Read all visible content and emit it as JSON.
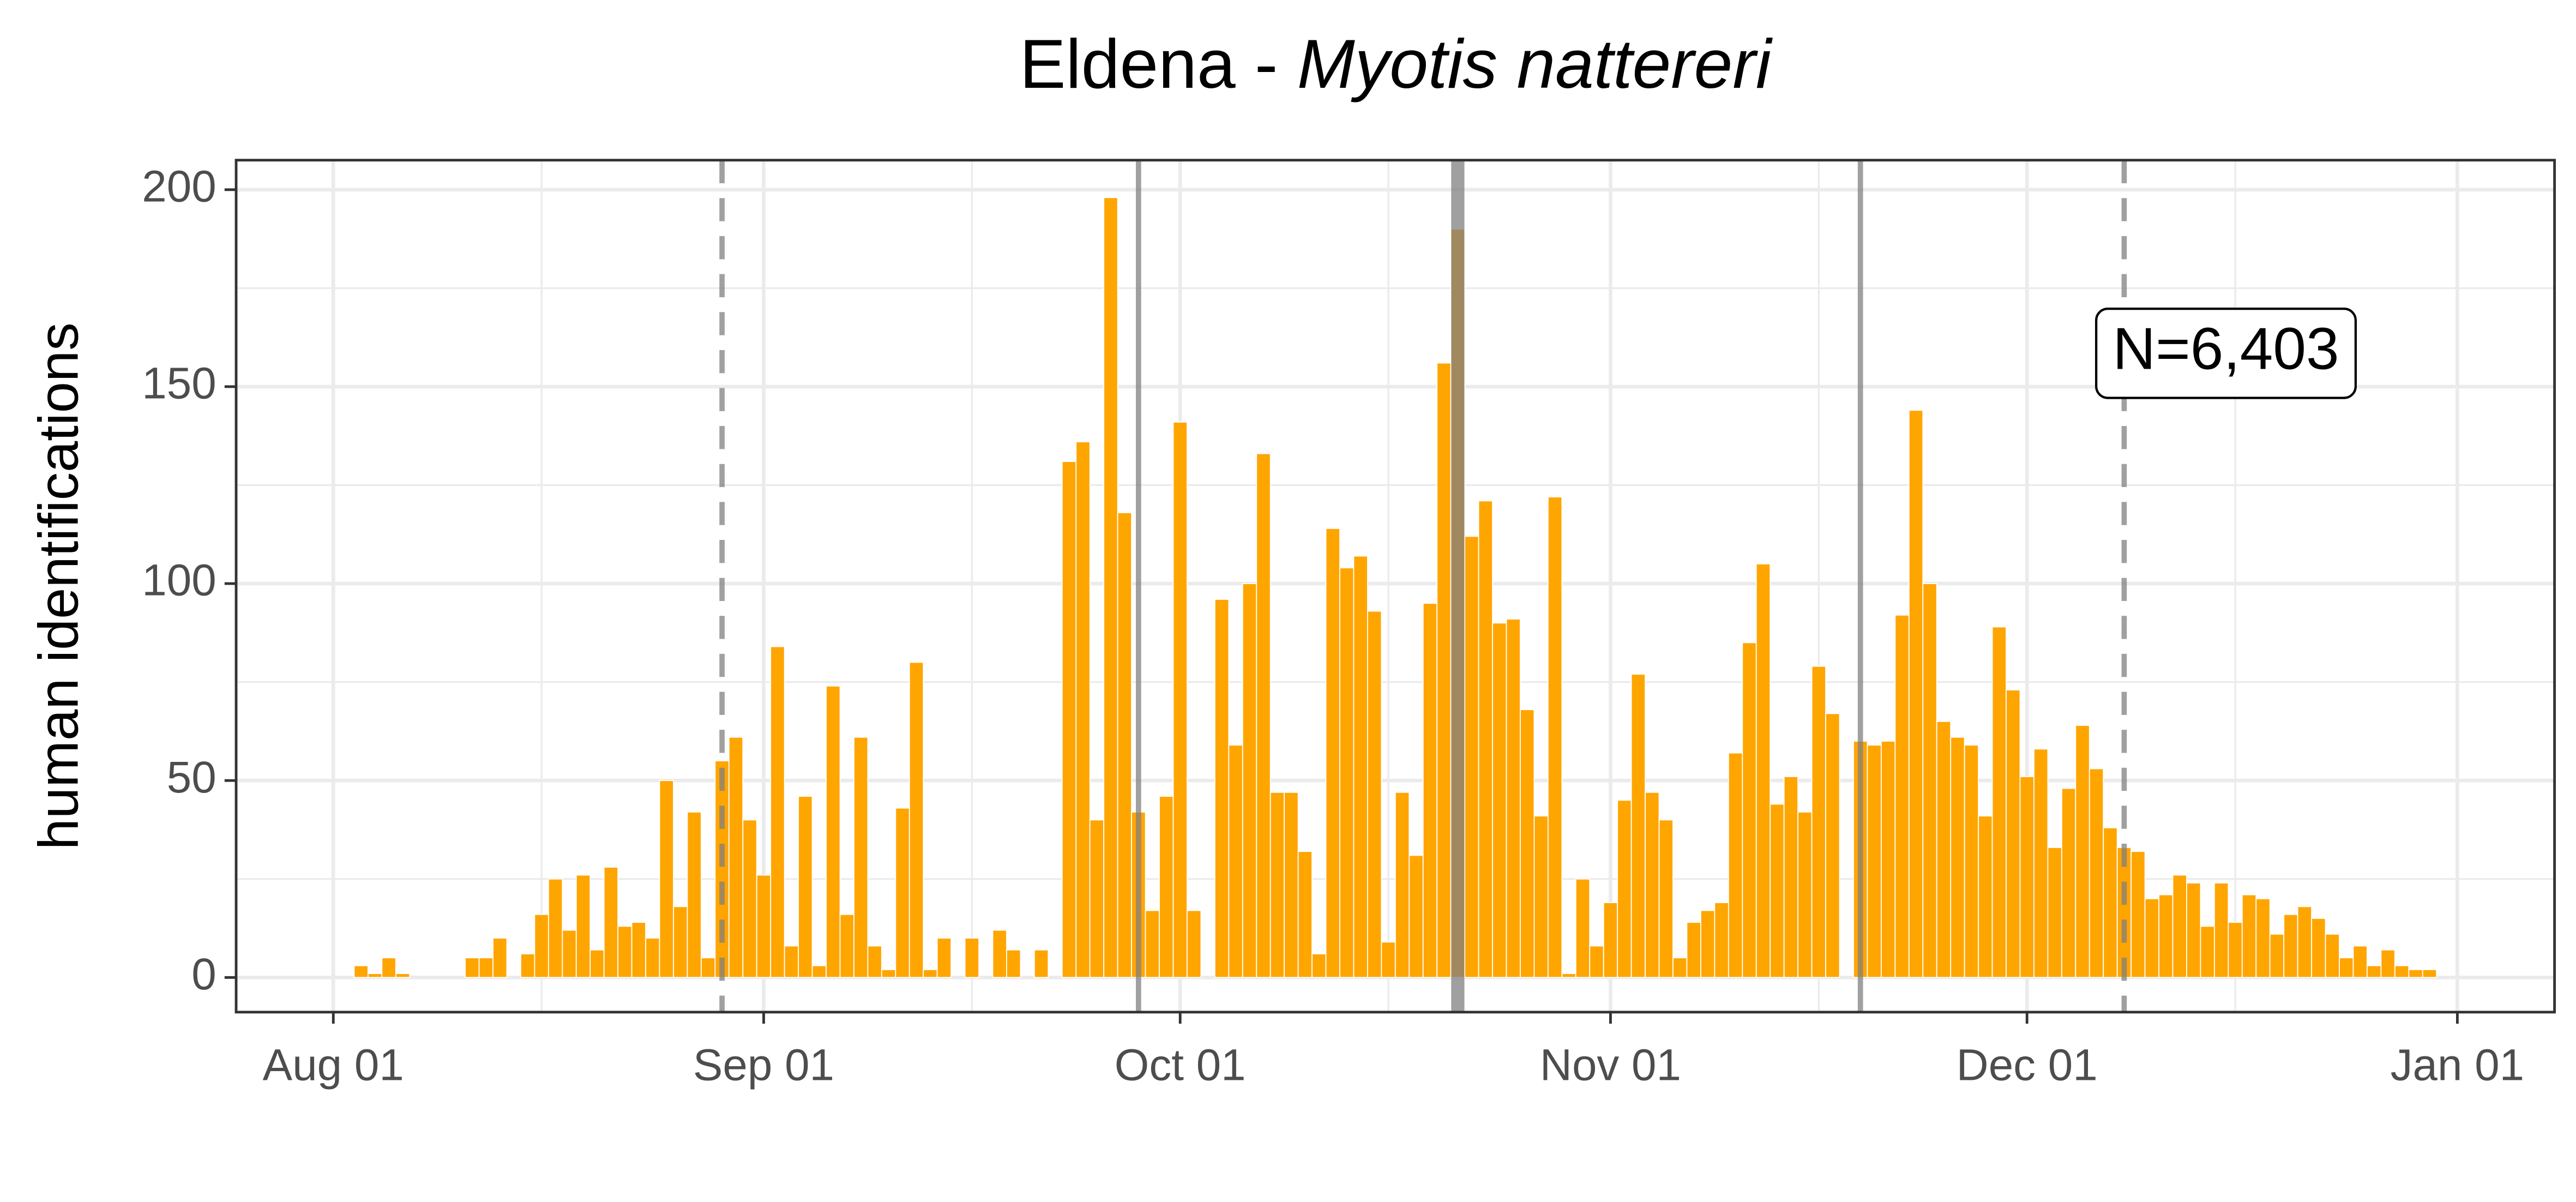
{
  "chart_data": {
    "type": "bar",
    "title_parts": [
      {
        "text": "Eldena - ",
        "style": "normal"
      },
      {
        "text": "Myotis nattereri",
        "style": "italic"
      }
    ],
    "y_label": "human identifications",
    "annotation": "N=6,403",
    "color": "#ffa500",
    "grid": true,
    "xlim": [
      "07-25",
      "01-08"
    ],
    "xticks": [
      {
        "value": "08-01",
        "label": "Aug 01"
      },
      {
        "value": "09-01",
        "label": "Sep 01"
      },
      {
        "value": "10-01",
        "label": "Oct 01"
      },
      {
        "value": "11-01",
        "label": "Nov 01"
      },
      {
        "value": "12-01",
        "label": "Dec 01"
      },
      {
        "value": "01-01",
        "label": "Jan 01"
      }
    ],
    "xminor_ticks": [
      "08-16",
      "09-16",
      "10-16",
      "11-16",
      "12-16"
    ],
    "ylim": [
      -8.8,
      207.5
    ],
    "yticks": [
      0,
      50,
      100,
      150,
      200
    ],
    "yminor_ticks": [
      25,
      75,
      125,
      175
    ],
    "vlines": [
      {
        "x": "08-29",
        "style": "dashed",
        "width": "normal"
      },
      {
        "x": "09-28",
        "style": "solid",
        "width": "normal"
      },
      {
        "x": "10-21",
        "style": "solid",
        "width": "thick"
      },
      {
        "x": "11-19",
        "style": "solid",
        "width": "normal"
      },
      {
        "x": "12-08",
        "style": "dashed",
        "width": "normal"
      }
    ],
    "x": [
      "08-03",
      "08-04",
      "08-05",
      "08-06",
      "08-07",
      "08-08",
      "08-09",
      "08-10",
      "08-11",
      "08-12",
      "08-13",
      "08-14",
      "08-15",
      "08-16",
      "08-17",
      "08-18",
      "08-19",
      "08-20",
      "08-21",
      "08-22",
      "08-23",
      "08-24",
      "08-25",
      "08-26",
      "08-27",
      "08-28",
      "08-29",
      "08-30",
      "08-31",
      "09-01",
      "09-02",
      "09-03",
      "09-04",
      "09-05",
      "09-06",
      "09-07",
      "09-08",
      "09-09",
      "09-10",
      "09-11",
      "09-12",
      "09-13",
      "09-14",
      "09-15",
      "09-16",
      "09-17",
      "09-18",
      "09-19",
      "09-20",
      "09-21",
      "09-22",
      "09-23",
      "09-24",
      "09-25",
      "09-26",
      "09-27",
      "09-28",
      "09-29",
      "09-30",
      "10-01",
      "10-02",
      "10-03",
      "10-04",
      "10-05",
      "10-06",
      "10-07",
      "10-08",
      "10-09",
      "10-10",
      "10-11",
      "10-12",
      "10-13",
      "10-14",
      "10-15",
      "10-16",
      "10-17",
      "10-18",
      "10-19",
      "10-20",
      "10-21",
      "10-22",
      "10-23",
      "10-24",
      "10-25",
      "10-26",
      "10-27",
      "10-28",
      "10-29",
      "10-30",
      "10-31",
      "11-01",
      "11-02",
      "11-03",
      "11-04",
      "11-05",
      "11-06",
      "11-07",
      "11-08",
      "11-09",
      "11-10",
      "11-11",
      "11-12",
      "11-13",
      "11-14",
      "11-15",
      "11-16",
      "11-17",
      "11-18",
      "11-19",
      "11-20",
      "11-21",
      "11-22",
      "11-23",
      "11-24",
      "11-25",
      "11-26",
      "11-27",
      "11-28",
      "11-29",
      "11-30",
      "12-01",
      "12-02",
      "12-03",
      "12-04",
      "12-05",
      "12-06",
      "12-07",
      "12-08",
      "12-09",
      "12-10",
      "12-11",
      "12-12",
      "12-13",
      "12-14",
      "12-15",
      "12-16",
      "12-17",
      "12-18",
      "12-19",
      "12-20",
      "12-21",
      "12-22",
      "12-23",
      "12-24",
      "12-25",
      "12-26",
      "12-27",
      "12-28",
      "12-29",
      "12-30"
    ],
    "values": [
      3,
      1,
      5,
      1,
      0,
      0,
      0,
      0,
      5,
      5,
      10,
      0,
      6,
      16,
      25,
      12,
      26,
      7,
      28,
      13,
      14,
      10,
      50,
      18,
      42,
      5,
      55,
      61,
      40,
      26,
      84,
      8,
      46,
      3,
      74,
      16,
      61,
      8,
      2,
      43,
      80,
      2,
      10,
      0,
      10,
      0,
      12,
      7,
      0,
      7,
      0,
      131,
      136,
      40,
      198,
      118,
      42,
      17,
      46,
      141,
      17,
      0,
      96,
      59,
      100,
      133,
      47,
      47,
      32,
      6,
      114,
      104,
      107,
      93,
      9,
      47,
      31,
      95,
      156,
      190,
      112,
      121,
      90,
      91,
      68,
      41,
      122,
      1,
      25,
      8,
      19,
      45,
      77,
      47,
      40,
      5,
      14,
      17,
      19,
      57,
      85,
      105,
      44,
      51,
      42,
      79,
      67,
      0,
      60,
      59,
      60,
      92,
      144,
      100,
      65,
      61,
      59,
      41,
      89,
      73,
      51,
      58,
      33,
      48,
      64,
      53,
      38,
      33,
      32,
      20,
      21,
      26,
      24,
      13,
      24,
      14,
      21,
      20,
      11,
      16,
      18,
      15,
      11,
      5,
      8,
      3,
      7,
      3,
      2,
      2
    ]
  }
}
